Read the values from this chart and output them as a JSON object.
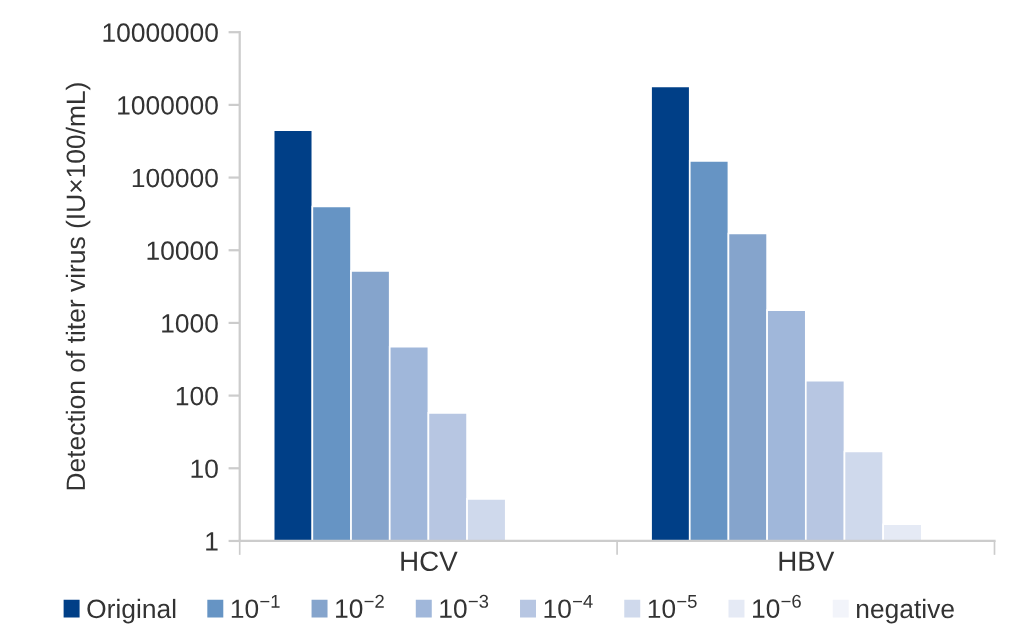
{
  "chart_data": {
    "type": "bar",
    "ylabel": "Detection of titer virus (IU×100/mL)",
    "categories": [
      "HCV",
      "HBV"
    ],
    "log": "y",
    "ylim": [
      1,
      10000000
    ],
    "yticks": [
      1,
      10,
      100,
      1000,
      10000,
      100000,
      1000000,
      10000000
    ],
    "grid": false,
    "legend": "bottom",
    "series": [
      {
        "name": "Original",
        "color": "#003f87",
        "values": [
          450000,
          1800000
        ]
      },
      {
        "name": "10$^{−1}$",
        "color": "#6694c4",
        "values": [
          40000,
          170000
        ]
      },
      {
        "name": "10$^{−2}$",
        "color": "#85a4cc",
        "values": [
          5200,
          17000
        ]
      },
      {
        "name": "10$^{−3}$",
        "color": "#a0b7da",
        "values": [
          470,
          1500
        ]
      },
      {
        "name": "10$^{−4}$",
        "color": "#b7c6e2",
        "values": [
          58,
          160
        ]
      },
      {
        "name": "10$^{−5}$",
        "color": "#cfd9ec",
        "values": [
          3.8,
          17
        ]
      },
      {
        "name": "10$^{−6}$",
        "color": "#e5eaf5",
        "values": [
          null,
          1.7
        ]
      },
      {
        "name": "negative",
        "color": "#f2f4fa",
        "values": [
          null,
          null
        ]
      }
    ]
  }
}
